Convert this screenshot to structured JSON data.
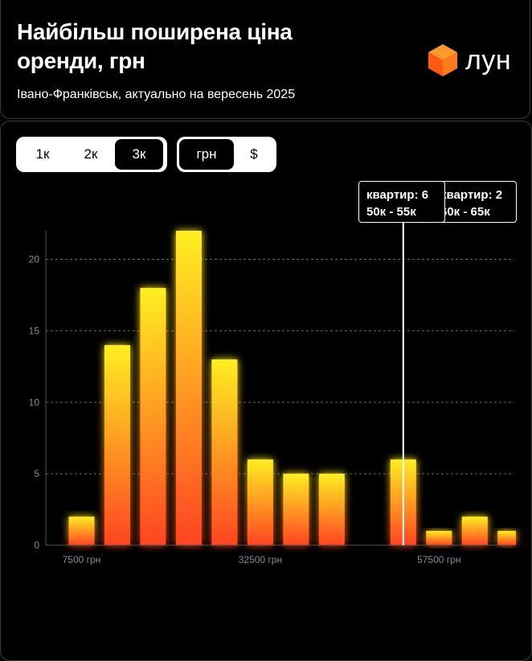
{
  "header": {
    "title": "Найбільш поширена ціна оренди, грн",
    "subtitle": "Івано-Франківськ, актуально на вересень 2025",
    "logo_text": "лун"
  },
  "controls": {
    "range_options": [
      "1к",
      "2к",
      "3к"
    ],
    "range_selected": "3к",
    "currency_options": [
      "грн",
      "$"
    ],
    "currency_selected": "грн"
  },
  "tooltips": [
    {
      "line1": "квартир: 6",
      "line2": "50к - 55к"
    },
    {
      "line1": "квартир: 2",
      "line2": "60к - 65к"
    }
  ],
  "colors": {
    "bar_top": "#ffee22",
    "bar_bottom": "#ff4422",
    "background": "#000000",
    "grid": "#666666",
    "axis_text": "#8a8a99",
    "cursor": "#ffffff"
  },
  "chart_data": {
    "type": "bar",
    "bin_width": 5000,
    "bins": [
      {
        "from": 5000,
        "to": 10000,
        "count": 2
      },
      {
        "from": 10000,
        "to": 15000,
        "count": 14
      },
      {
        "from": 15000,
        "to": 20000,
        "count": 18
      },
      {
        "from": 20000,
        "to": 25000,
        "count": 22
      },
      {
        "from": 25000,
        "to": 30000,
        "count": 13
      },
      {
        "from": 30000,
        "to": 35000,
        "count": 6
      },
      {
        "from": 35000,
        "to": 40000,
        "count": 5
      },
      {
        "from": 40000,
        "to": 45000,
        "count": 5
      },
      {
        "from": 45000,
        "to": 50000,
        "count": 0
      },
      {
        "from": 50000,
        "to": 55000,
        "count": 6
      },
      {
        "from": 55000,
        "to": 60000,
        "count": 1
      },
      {
        "from": 60000,
        "to": 65000,
        "count": 2
      },
      {
        "from": 65000,
        "to": 70000,
        "count": 1
      }
    ],
    "x_ticks": [
      {
        "value": 7500,
        "label": "7500 грн"
      },
      {
        "value": 32500,
        "label": "32500 грн"
      },
      {
        "value": 57500,
        "label": "57500 грн"
      }
    ],
    "y_ticks": [
      0,
      5,
      10,
      15,
      20
    ],
    "ylim": [
      0,
      22
    ],
    "xlim": [
      2500,
      70000
    ],
    "grid": true,
    "cursor_x": 52500
  }
}
